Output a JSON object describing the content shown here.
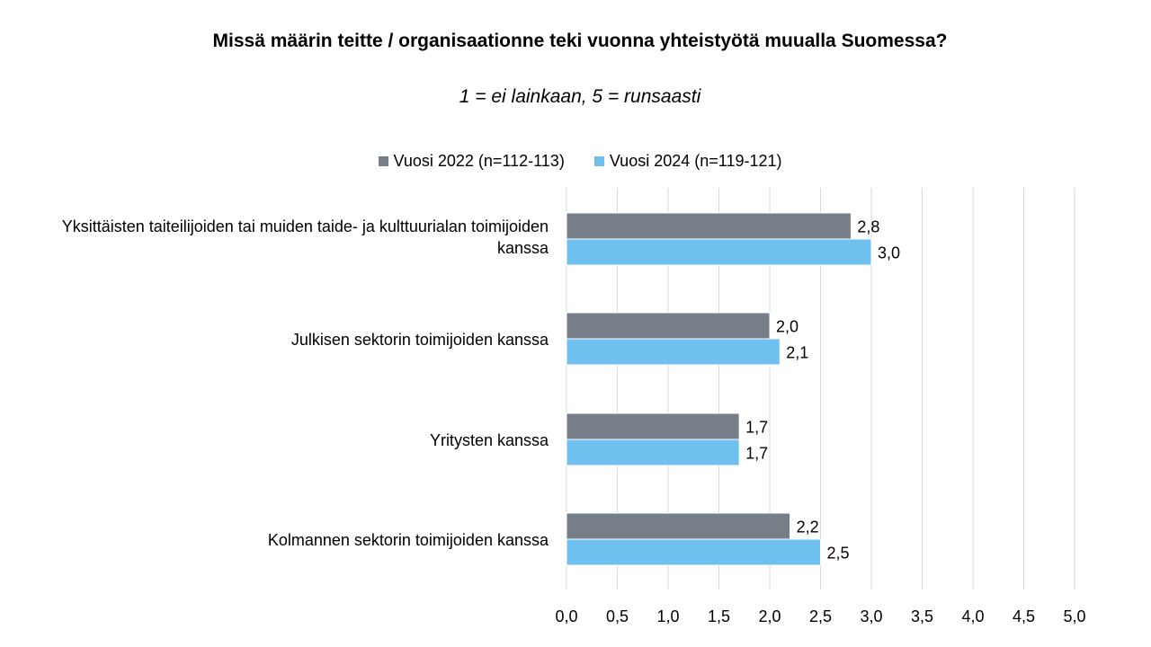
{
  "chart_data": {
    "type": "bar",
    "orientation": "horizontal",
    "title": "Missä määrin teitte / organisaationne teki vuonna  yhteistyötä muualla Suomessa?",
    "subtitle": "1 = ei lainkaan, 5 = runsaasti",
    "categories": [
      "Yksittäisten taiteilijoiden tai muiden taide- ja kulttuurialan toimijoiden kanssa",
      "Julkisen sektorin toimijoiden kanssa",
      "Yritysten kanssa",
      "Kolmannen sektorin toimijoiden kanssa"
    ],
    "series": [
      {
        "name": "Vuosi 2022 (n=112-113)",
        "values": [
          2.8,
          2.0,
          1.7,
          2.2
        ],
        "labels": [
          "2,8",
          "2,0",
          "1,7",
          "2,2"
        ],
        "color": "#767e88"
      },
      {
        "name": "Vuosi 2024 (n=119-121)",
        "values": [
          3.0,
          2.1,
          1.7,
          2.5
        ],
        "labels": [
          "3,0",
          "2,1",
          "1,7",
          "2,5"
        ],
        "color": "#6fc0ee"
      }
    ],
    "xlim": [
      0,
      5
    ],
    "xticks": [
      "0,0",
      "0,5",
      "1,0",
      "1,5",
      "2,0",
      "2,5",
      "3,0",
      "3,5",
      "4,0",
      "4,5",
      "5,0"
    ],
    "xlabel": "",
    "ylabel": "",
    "grid": "vertical",
    "legend_position": "top"
  }
}
